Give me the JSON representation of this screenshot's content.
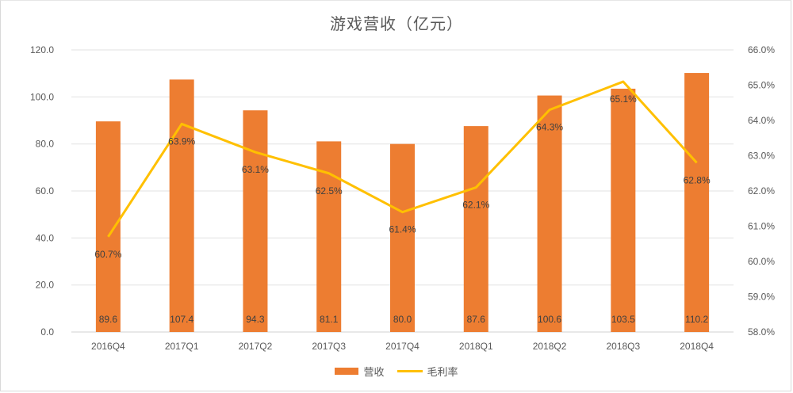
{
  "chart_data": {
    "type": "bar+line",
    "title": "游戏营收（亿元）",
    "categories": [
      "2016Q4",
      "2017Q1",
      "2017Q2",
      "2017Q3",
      "2017Q4",
      "2018Q1",
      "2018Q2",
      "2018Q3",
      "2018Q4"
    ],
    "series": [
      {
        "name": "营收",
        "type": "bar",
        "axis": "left",
        "color": "#ED7D31",
        "values": [
          89.6,
          107.4,
          94.3,
          81.1,
          80.0,
          87.6,
          100.6,
          103.5,
          110.2
        ],
        "labels": [
          "89.6",
          "107.4",
          "94.3",
          "81.1",
          "80.0",
          "87.6",
          "100.6",
          "103.5",
          "110.2"
        ]
      },
      {
        "name": "毛利率",
        "type": "line",
        "axis": "right",
        "color": "#FFC000",
        "values": [
          60.7,
          63.9,
          63.1,
          62.5,
          61.4,
          62.1,
          64.3,
          65.1,
          62.8
        ],
        "labels": [
          "60.7%",
          "63.9%",
          "63.1%",
          "62.5%",
          "61.4%",
          "62.1%",
          "64.3%",
          "65.1%",
          "62.8%"
        ]
      }
    ],
    "left_axis": {
      "ylim": [
        0,
        120
      ],
      "ticks": [
        "0.0",
        "20.0",
        "40.0",
        "60.0",
        "80.0",
        "100.0",
        "120.0"
      ]
    },
    "right_axis": {
      "ylim": [
        58,
        66
      ],
      "ticks": [
        "58.0%",
        "59.0%",
        "60.0%",
        "61.0%",
        "62.0%",
        "63.0%",
        "64.0%",
        "65.0%",
        "66.0%"
      ]
    },
    "xlabel": "",
    "ylabel": "",
    "grid": true,
    "legend_position": "bottom"
  },
  "legend": {
    "bar_label": "营收",
    "line_label": "毛利率"
  }
}
